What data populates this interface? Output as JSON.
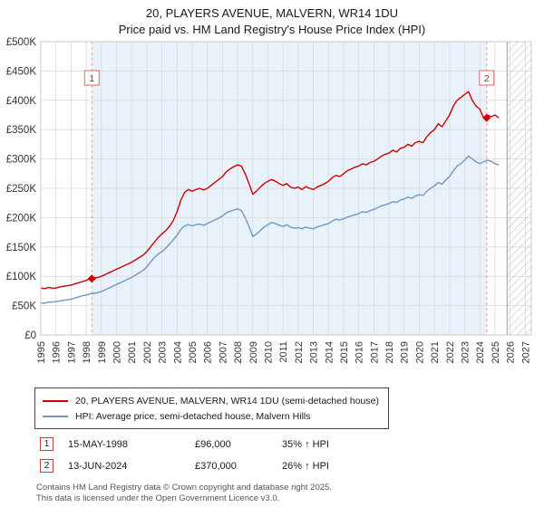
{
  "title": "20, PLAYERS AVENUE, MALVERN, WR14 1DU",
  "subtitle": "Price paid vs. HM Land Registry's House Price Index (HPI)",
  "chart_data": {
    "type": "line",
    "x_range": [
      1995,
      2027.4
    ],
    "y_range": [
      0,
      500000
    ],
    "y_ticks": [
      0,
      50000,
      100000,
      150000,
      200000,
      250000,
      300000,
      350000,
      400000,
      450000,
      500000
    ],
    "y_tick_labels": [
      "£0",
      "£50K",
      "£100K",
      "£150K",
      "£200K",
      "£250K",
      "£300K",
      "£350K",
      "£400K",
      "£450K",
      "£500K"
    ],
    "x_ticks": [
      1995,
      1996,
      1997,
      1998,
      1999,
      2000,
      2001,
      2002,
      2003,
      2004,
      2005,
      2006,
      2007,
      2008,
      2009,
      2010,
      2011,
      2012,
      2013,
      2014,
      2015,
      2016,
      2017,
      2018,
      2019,
      2020,
      2021,
      2022,
      2023,
      2024,
      2025,
      2026,
      2027
    ],
    "x_start": 1995,
    "x_step": 0.25,
    "grid": true,
    "legend_position": "bottom",
    "shaded_region": [
      1998.37,
      2024.45
    ],
    "hatch_region": [
      2025.8,
      2027.4
    ],
    "colors": {
      "shade": "#e9f1fa",
      "dashed": "#e09c9c",
      "grid": "#d9d9d9",
      "border": "#c8c8c8",
      "hatch": "#c4c4c4",
      "marker": "#cc0000"
    },
    "series": [
      {
        "id": "price-paid",
        "name": "20, PLAYERS AVENUE, MALVERN, WR14 1DU (semi-detached house)",
        "color": "#cc0000",
        "values": [
          80000,
          79000,
          81000,
          80000,
          80000,
          82000,
          83000,
          84000,
          85000,
          87000,
          89000,
          91000,
          93000,
          96000,
          97000,
          98000,
          100000,
          103000,
          106000,
          109000,
          112000,
          115000,
          118000,
          121000,
          124000,
          128000,
          132000,
          136000,
          142000,
          150000,
          158000,
          166000,
          172000,
          178000,
          185000,
          195000,
          210000,
          230000,
          243000,
          248000,
          245000,
          248000,
          250000,
          247000,
          250000,
          255000,
          260000,
          265000,
          270000,
          278000,
          283000,
          287000,
          290000,
          288000,
          275000,
          258000,
          240000,
          245000,
          252000,
          258000,
          262000,
          265000,
          262000,
          258000,
          255000,
          258000,
          252000,
          250000,
          252000,
          248000,
          253000,
          250000,
          248000,
          252000,
          255000,
          258000,
          262000,
          268000,
          272000,
          270000,
          275000,
          280000,
          283000,
          286000,
          288000,
          292000,
          290000,
          294000,
          296000,
          300000,
          305000,
          308000,
          310000,
          315000,
          312000,
          318000,
          320000,
          325000,
          322000,
          328000,
          330000,
          328000,
          338000,
          345000,
          350000,
          360000,
          355000,
          365000,
          375000,
          390000,
          400000,
          405000,
          410000,
          415000,
          400000,
          390000,
          385000,
          370000,
          375000,
          372000,
          375000,
          370000
        ]
      },
      {
        "id": "hpi",
        "name": "HPI: Average price, semi-detached house, Malvern Hills",
        "color": "#6f97c8",
        "values": [
          55000,
          54000,
          56000,
          56000,
          57000,
          58000,
          59000,
          60000,
          61000,
          63000,
          65000,
          67000,
          68000,
          70000,
          71000,
          72000,
          74000,
          77000,
          80000,
          83000,
          86000,
          89000,
          92000,
          95000,
          98000,
          102000,
          106000,
          110000,
          116000,
          124000,
          132000,
          138000,
          142000,
          148000,
          155000,
          162000,
          170000,
          180000,
          186000,
          188000,
          186000,
          188000,
          189000,
          187000,
          190000,
          193000,
          196000,
          199000,
          203000,
          208000,
          211000,
          213000,
          215000,
          212000,
          200000,
          185000,
          168000,
          172000,
          178000,
          184000,
          188000,
          192000,
          190000,
          187000,
          185000,
          188000,
          184000,
          182000,
          183000,
          181000,
          184000,
          182000,
          181000,
          184000,
          186000,
          188000,
          190000,
          194000,
          197000,
          196000,
          198000,
          201000,
          203000,
          205000,
          207000,
          210000,
          209000,
          212000,
          214000,
          217000,
          220000,
          222000,
          224000,
          227000,
          226000,
          230000,
          232000,
          235000,
          233000,
          237000,
          239000,
          238000,
          245000,
          250000,
          254000,
          260000,
          257000,
          264000,
          270000,
          280000,
          288000,
          292000,
          298000,
          305000,
          300000,
          295000,
          292000,
          295000,
          298000,
          296000,
          292000,
          290000
        ]
      }
    ],
    "markers": [
      {
        "label": "1",
        "x": 1998.37,
        "y": 96000
      },
      {
        "label": "2",
        "x": 2024.45,
        "y": 370000
      }
    ]
  },
  "transactions": [
    {
      "num": "1",
      "date": "15-MAY-1998",
      "price": "£96,000",
      "hpi": "35% ↑ HPI"
    },
    {
      "num": "2",
      "date": "13-JUN-2024",
      "price": "£370,000",
      "hpi": "26% ↑ HPI"
    }
  ],
  "footer": {
    "line1": "Contains HM Land Registry data © Crown copyright and database right 2025.",
    "line2": "This data is licensed under the Open Government Licence v3.0."
  }
}
